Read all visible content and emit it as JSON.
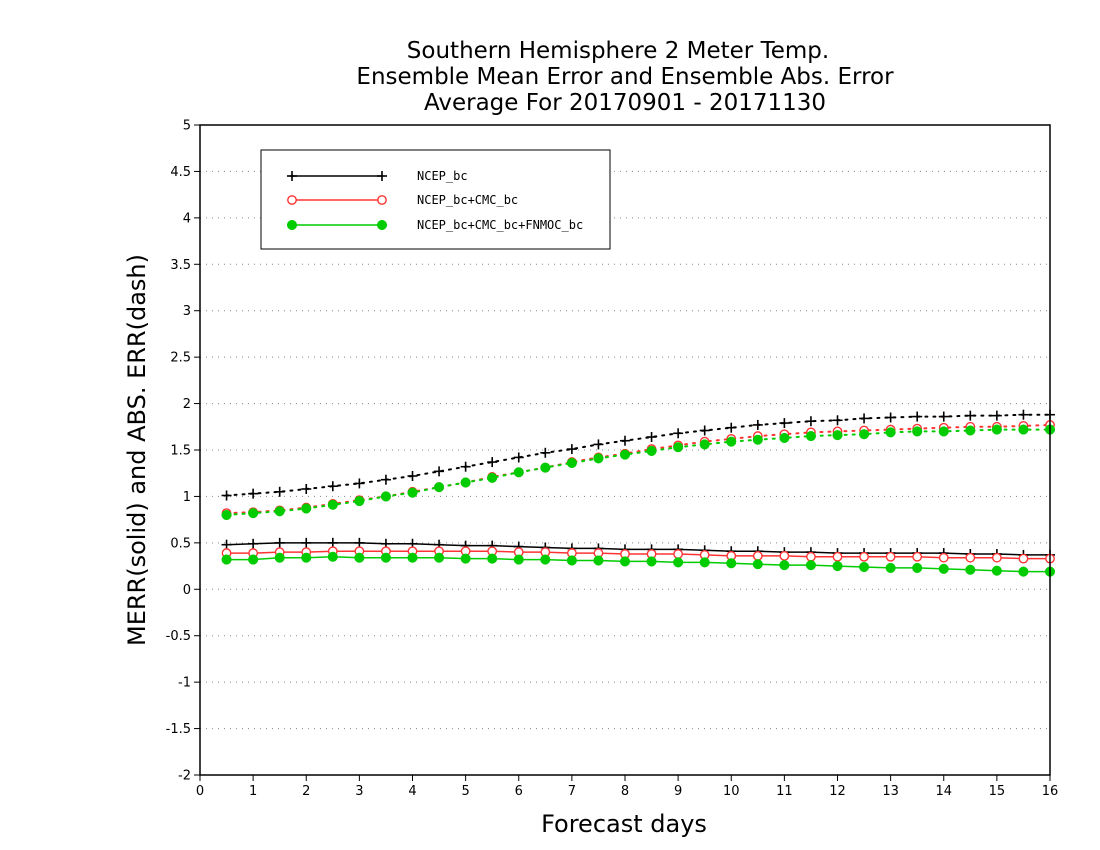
{
  "chart_data": {
    "type": "line",
    "title": [
      "Southern Hemisphere 2 Meter Temp.",
      "Ensemble Mean Error and Ensemble Abs. Error",
      "Average For 20170901 - 20171130"
    ],
    "xlabel": "Forecast days",
    "ylabel": "MERR(solid) and ABS. ERR(dash)",
    "xlim": [
      0,
      16
    ],
    "ylim": [
      -2,
      5
    ],
    "x_ticks": [
      "0",
      "1",
      "2",
      "3",
      "4",
      "5",
      "6",
      "7",
      "8",
      "9",
      "10",
      "11",
      "12",
      "13",
      "14",
      "15",
      "16"
    ],
    "y_ticks": [
      "-2",
      "-1.5",
      "-1",
      "-0.5",
      "0",
      "0.5",
      "1",
      "1.5",
      "2",
      "2.5",
      "3",
      "3.5",
      "4",
      "4.5",
      "5"
    ],
    "grid": "horizontal-dotted",
    "legend_placement": "top-left",
    "x": [
      0.5,
      1,
      1.5,
      2,
      2.5,
      3,
      3.5,
      4,
      4.5,
      5,
      5.5,
      6,
      6.5,
      7,
      7.5,
      8,
      8.5,
      9,
      9.5,
      10,
      10.5,
      11,
      11.5,
      12,
      12.5,
      13,
      13.5,
      14,
      14.5,
      15,
      15.5,
      16
    ],
    "series": [
      {
        "name": "NCEP_bc",
        "color": "#000000",
        "marker": "plus",
        "merr": [
          0.48,
          0.49,
          0.5,
          0.5,
          0.5,
          0.5,
          0.49,
          0.49,
          0.48,
          0.47,
          0.47,
          0.46,
          0.45,
          0.44,
          0.44,
          0.43,
          0.43,
          0.43,
          0.42,
          0.41,
          0.41,
          0.4,
          0.4,
          0.39,
          0.39,
          0.39,
          0.39,
          0.39,
          0.38,
          0.38,
          0.37,
          0.37
        ],
        "abs_err": [
          1.01,
          1.03,
          1.05,
          1.08,
          1.11,
          1.14,
          1.18,
          1.22,
          1.27,
          1.32,
          1.37,
          1.42,
          1.47,
          1.51,
          1.56,
          1.6,
          1.64,
          1.68,
          1.71,
          1.74,
          1.77,
          1.79,
          1.81,
          1.82,
          1.84,
          1.85,
          1.86,
          1.86,
          1.87,
          1.87,
          1.88,
          1.88
        ]
      },
      {
        "name": "NCEP_bc+CMC_bc",
        "color": "#ff3333",
        "marker": "open-circle",
        "merr": [
          0.39,
          0.39,
          0.4,
          0.4,
          0.41,
          0.41,
          0.41,
          0.41,
          0.41,
          0.41,
          0.41,
          0.4,
          0.4,
          0.39,
          0.39,
          0.38,
          0.38,
          0.38,
          0.37,
          0.36,
          0.36,
          0.36,
          0.35,
          0.35,
          0.35,
          0.35,
          0.35,
          0.34,
          0.34,
          0.34,
          0.33,
          0.33
        ],
        "abs_err": [
          0.82,
          0.83,
          0.85,
          0.88,
          0.92,
          0.96,
          1.0,
          1.05,
          1.1,
          1.15,
          1.21,
          1.26,
          1.31,
          1.37,
          1.42,
          1.46,
          1.51,
          1.55,
          1.59,
          1.62,
          1.65,
          1.67,
          1.69,
          1.7,
          1.71,
          1.72,
          1.73,
          1.74,
          1.75,
          1.75,
          1.76,
          1.77
        ]
      },
      {
        "name": "NCEP_bc+CMC_bc+FNMOC_bc",
        "color": "#00cc00",
        "marker": "filled-circle",
        "merr": [
          0.32,
          0.32,
          0.34,
          0.34,
          0.35,
          0.34,
          0.34,
          0.34,
          0.34,
          0.33,
          0.33,
          0.32,
          0.32,
          0.31,
          0.31,
          0.3,
          0.3,
          0.29,
          0.29,
          0.28,
          0.27,
          0.26,
          0.26,
          0.25,
          0.24,
          0.23,
          0.23,
          0.22,
          0.21,
          0.2,
          0.19,
          0.19
        ],
        "abs_err": [
          0.8,
          0.82,
          0.84,
          0.87,
          0.91,
          0.95,
          1.0,
          1.04,
          1.1,
          1.15,
          1.2,
          1.26,
          1.31,
          1.36,
          1.41,
          1.45,
          1.49,
          1.53,
          1.56,
          1.59,
          1.61,
          1.63,
          1.65,
          1.66,
          1.67,
          1.69,
          1.7,
          1.7,
          1.71,
          1.72,
          1.72,
          1.72
        ]
      }
    ]
  }
}
